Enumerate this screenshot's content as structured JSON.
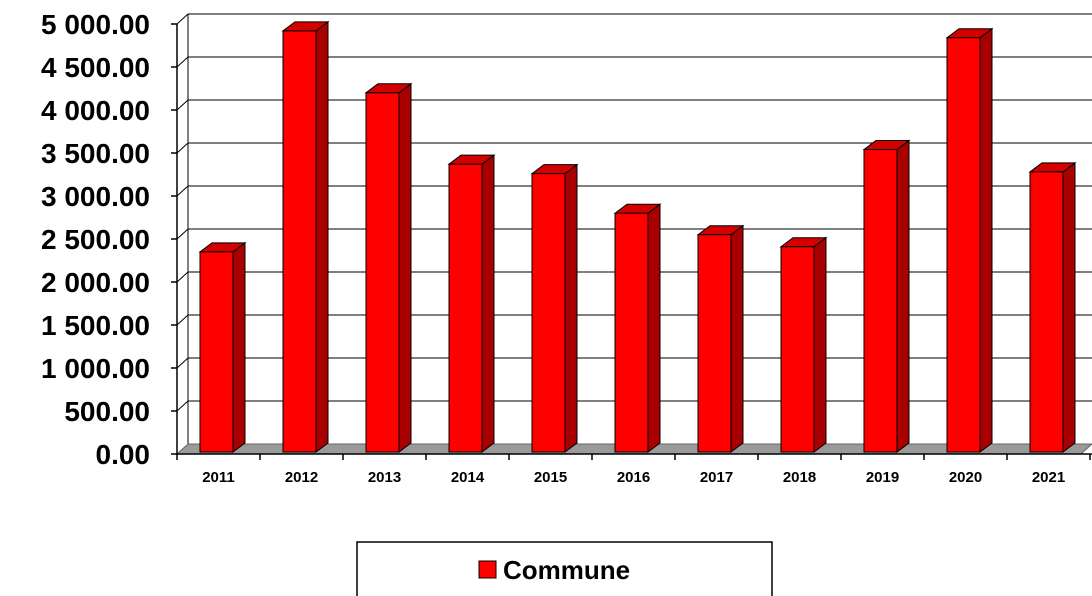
{
  "chart_data": {
    "type": "bar",
    "categories": [
      "2011",
      "2012",
      "2013",
      "2014",
      "2015",
      "2016",
      "2017",
      "2018",
      "2019",
      "2020",
      "2021"
    ],
    "series": [
      {
        "name": "Commune",
        "values": [
          2350,
          4920,
          4200,
          3370,
          3260,
          2800,
          2550,
          2410,
          3540,
          4840,
          3280
        ],
        "color": "#ff0000"
      }
    ],
    "y_tick_labels": [
      "0.00",
      "500.00",
      "1 000.00",
      "1 500.00",
      "2 000.00",
      "2 500.00",
      "3 000.00",
      "3 500.00",
      "4 000.00",
      "4 500.00",
      "5 000.00"
    ],
    "ylim": [
      0,
      5000
    ],
    "title": "",
    "xlabel": "",
    "ylabel": "",
    "grid": true,
    "legend_position": "bottom",
    "style": "3d-column",
    "colors": {
      "bar_front": "#ff0000",
      "bar_side": "#a80000",
      "bar_top": "#d40000",
      "floor": "#9a9a9a",
      "grid": "#000000"
    }
  }
}
